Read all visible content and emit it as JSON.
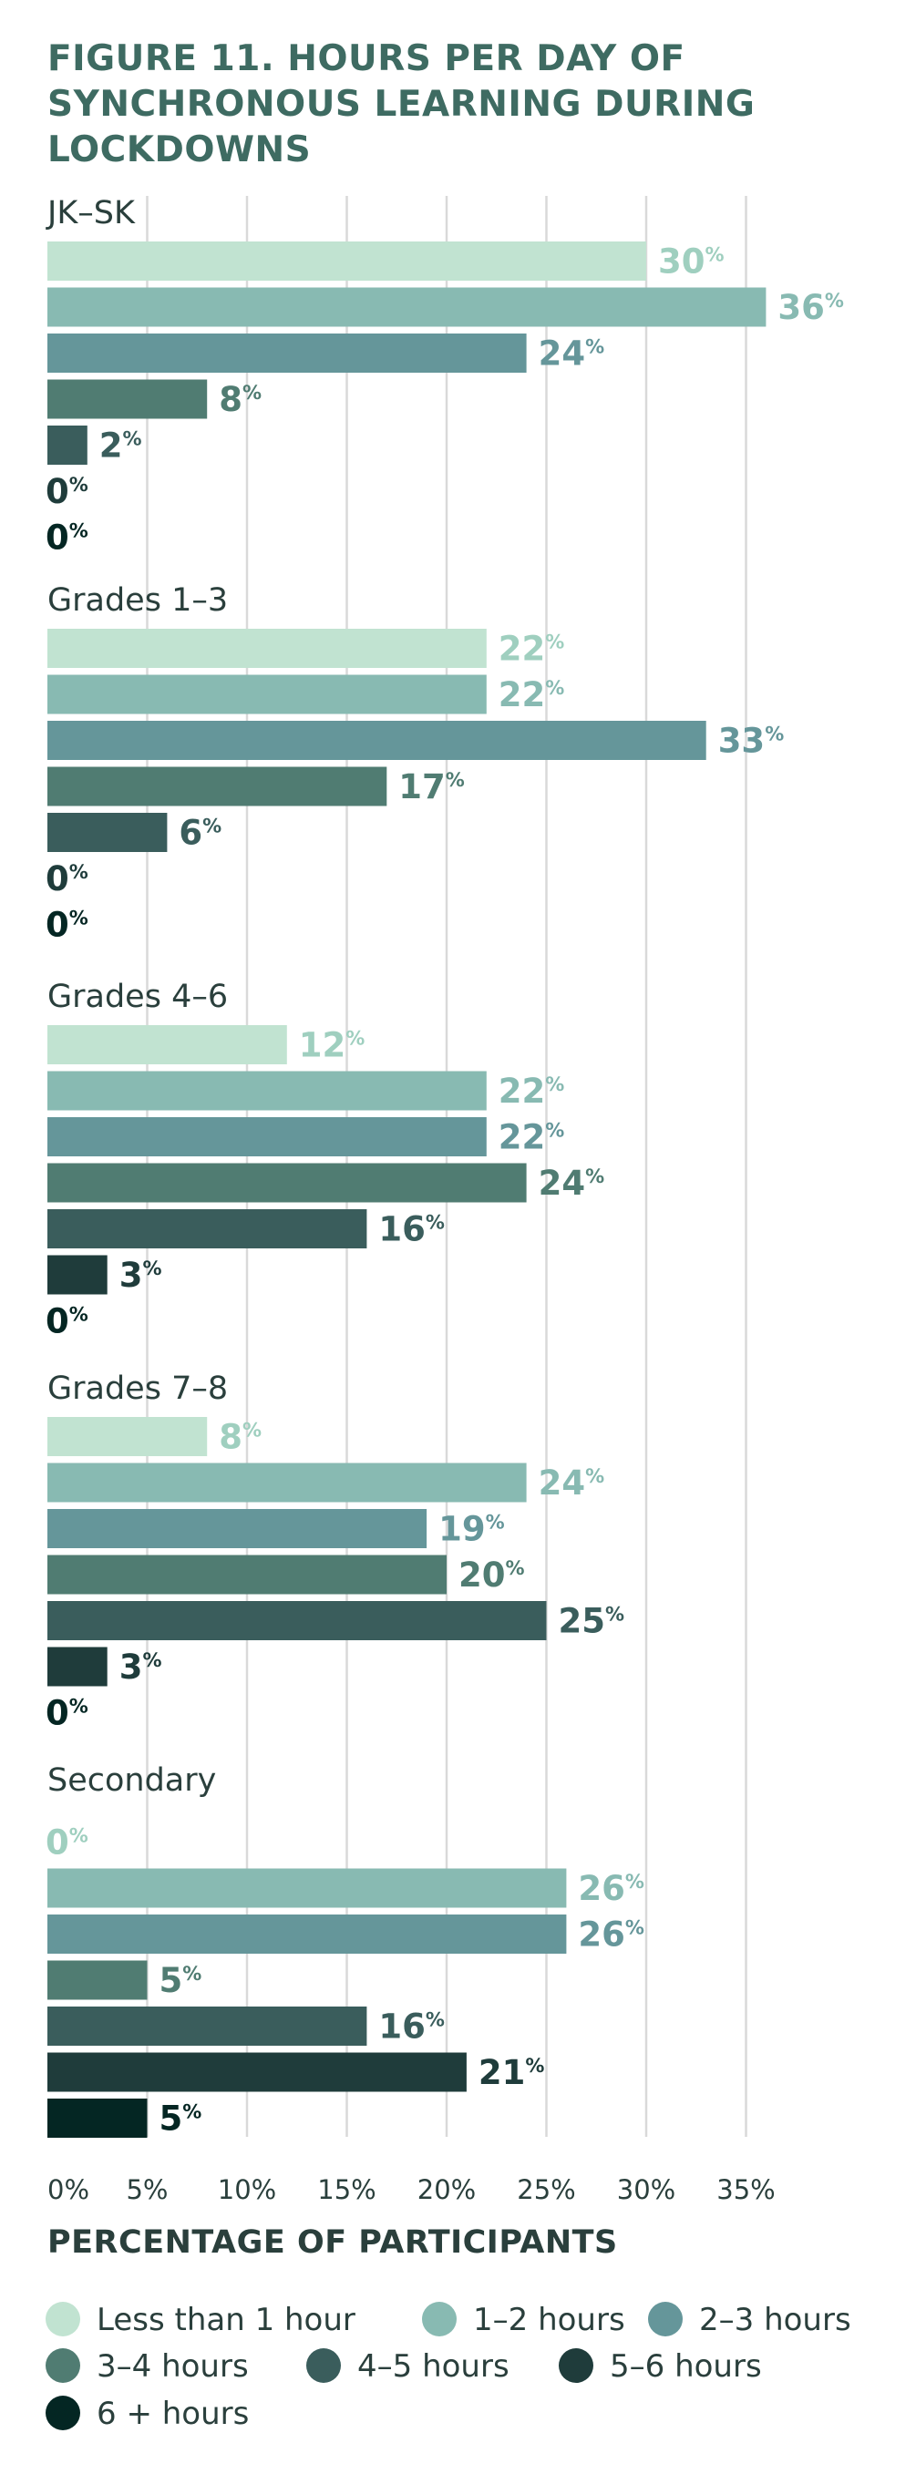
{
  "chart_data": {
    "type": "bar",
    "orientation": "horizontal",
    "title": "FIGURE 11. HOURS PER DAY OF SYNCHRONOUS LEARNING DURING LOCKDOWNS",
    "xlabel": "PERCENTAGE OF PARTICIPANTS",
    "xlim": [
      0,
      37
    ],
    "x_ticks": [
      0,
      5,
      10,
      15,
      20,
      25,
      30,
      35
    ],
    "x_tick_labels": [
      "0%",
      "5%",
      "10%",
      "15%",
      "20%",
      "25%",
      "30%",
      "35%"
    ],
    "grid": true,
    "legend_position": "bottom",
    "value_suffix": "%",
    "categories": [
      "JK–SK",
      "Grades 1–3",
      "Grades 4–6",
      "Grades 7–8",
      "Secondary"
    ],
    "series": [
      {
        "name": "Less than 1 hour",
        "color": "#c1e3d1",
        "label_color": "#9fcfbf",
        "values": [
          30,
          22,
          12,
          8,
          0
        ]
      },
      {
        "name": "1–2 hours",
        "color": "#88bab2",
        "label_color": "#88bab2",
        "values": [
          36,
          22,
          22,
          24,
          26
        ]
      },
      {
        "name": "2–3 hours",
        "color": "#65969a",
        "label_color": "#65969a",
        "values": [
          24,
          33,
          22,
          19,
          26
        ]
      },
      {
        "name": "3–4 hours",
        "color": "#507c72",
        "label_color": "#507c72",
        "values": [
          8,
          17,
          24,
          20,
          5
        ]
      },
      {
        "name": "4–5 hours",
        "color": "#3a5d5c",
        "label_color": "#3a5d5c",
        "values": [
          2,
          6,
          16,
          25,
          16
        ]
      },
      {
        "name": "5–6 hours",
        "color": "#1f3c3b",
        "label_color": "#1f3c3b",
        "values": [
          0,
          0,
          3,
          3,
          21
        ]
      },
      {
        "name": "6 + hours",
        "color": "#042623",
        "label_color": "#042623",
        "values": [
          0,
          0,
          0,
          0,
          5
        ]
      }
    ],
    "series_shown_per_category": [
      [
        0,
        1,
        2,
        3,
        4,
        5,
        6
      ],
      [
        0,
        1,
        2,
        3,
        4,
        5,
        6
      ],
      [
        0,
        1,
        2,
        3,
        4,
        5,
        6
      ],
      [
        0,
        1,
        2,
        3,
        4,
        5,
        6
      ],
      [
        0,
        1,
        2,
        3,
        4,
        5,
        6
      ]
    ]
  }
}
